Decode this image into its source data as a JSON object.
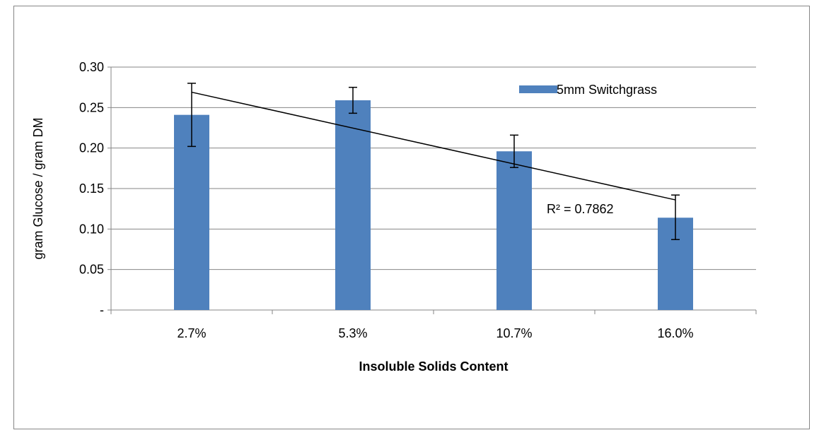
{
  "chart_data": {
    "type": "bar",
    "title": "",
    "xlabel": "Insoluble Solids Content",
    "ylabel": "gram Glucose / gram DM",
    "categories": [
      "2.7%",
      "5.3%",
      "10.7%",
      "16.0%"
    ],
    "series": [
      {
        "name": "5mm Switchgrass",
        "color": "#4F81BD",
        "values": [
          0.241,
          0.259,
          0.196,
          0.114
        ],
        "error_high": [
          0.28,
          0.275,
          0.216,
          0.142
        ],
        "error_low": [
          0.202,
          0.243,
          0.176,
          0.087
        ]
      }
    ],
    "ylim": [
      0,
      0.3
    ],
    "yticks": [
      {
        "value": 0,
        "label": "-"
      },
      {
        "value": 0.05,
        "label": "0.05"
      },
      {
        "value": 0.1,
        "label": "0.10"
      },
      {
        "value": 0.15,
        "label": "0.15"
      },
      {
        "value": 0.2,
        "label": "0.20"
      },
      {
        "value": 0.25,
        "label": "0.25"
      },
      {
        "value": 0.3,
        "label": "0.30"
      }
    ],
    "grid": true,
    "legend_position": "top-right",
    "trendline": {
      "type": "linear",
      "start": 0.269,
      "end": 0.136,
      "r_squared_label": "R² = 0.7862"
    }
  }
}
